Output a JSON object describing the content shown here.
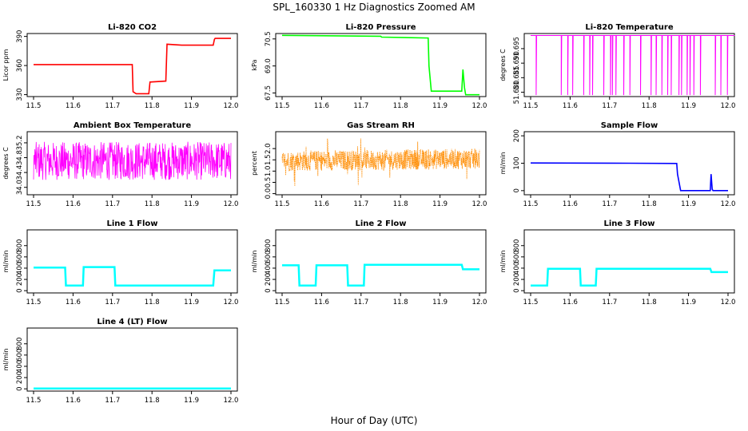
{
  "figure": {
    "title": "SPL_160330 1 Hz Diagnostics Zoomed AM",
    "xlabel": "Hour of Day (UTC)"
  },
  "chart_data": [
    {
      "type": "line",
      "title": "Li-820 CO2",
      "ylabel": "Licor ppm",
      "color": "#ff0000",
      "xlim": [
        11.5,
        12.0
      ],
      "ylim": [
        328,
        393
      ],
      "xticks": [
        11.5,
        11.6,
        11.7,
        11.8,
        11.9,
        12.0
      ],
      "yticks": [
        330,
        360,
        390
      ],
      "series": [
        {
          "x": [
            11.5,
            11.75,
            11.752,
            11.76,
            11.792,
            11.795,
            11.835,
            11.838,
            11.875,
            11.955,
            11.958,
            11.96,
            12.0
          ],
          "y": [
            361,
            361,
            333,
            331,
            331,
            343,
            344,
            382,
            381,
            381,
            387,
            388,
            388
          ]
        }
      ]
    },
    {
      "type": "line",
      "title": "Li-820 Pressure",
      "ylabel": "kPa",
      "color": "#00ff00",
      "xlim": [
        11.5,
        12.0
      ],
      "ylim": [
        67.3,
        70.8
      ],
      "xticks": [
        11.5,
        11.6,
        11.7,
        11.8,
        11.9,
        12.0
      ],
      "yticks": [
        67.5,
        69.0,
        70.5
      ],
      "series": [
        {
          "x": [
            11.5,
            11.75,
            11.752,
            11.87,
            11.872,
            11.878,
            11.885,
            11.955,
            11.958,
            11.962,
            11.965,
            11.975,
            12.0
          ],
          "y": [
            70.7,
            70.65,
            70.6,
            70.55,
            69.0,
            67.6,
            67.6,
            67.6,
            68.8,
            67.8,
            67.4,
            67.4,
            67.4
          ]
        }
      ]
    },
    {
      "type": "line",
      "title": "Li-820 Temperature",
      "ylabel": "degrees C",
      "color": "#ff00ff",
      "xlim": [
        11.5,
        12.0
      ],
      "ylim": [
        51.6785,
        51.7002
      ],
      "xticks": [
        11.5,
        11.6,
        11.7,
        11.8,
        11.9,
        12.0
      ],
      "yticks": [
        51.68,
        51.685,
        51.69,
        51.695
      ],
      "series": [
        {
          "x": [
            11.5,
            12.0
          ],
          "y": [
            51.6995,
            51.679
          ]
        }
      ]
    },
    {
      "type": "line",
      "title": "Ambient Box Temperature",
      "ylabel": "degrees C",
      "color": "#ff00ff",
      "xlim": [
        11.5,
        12.0
      ],
      "ylim": [
        33.8,
        35.5
      ],
      "xticks": [
        11.5,
        11.6,
        11.7,
        11.8,
        11.9,
        12.0
      ],
      "yticks": [
        34.0,
        34.4,
        34.8,
        35.2
      ],
      "series": [
        {
          "x": [
            11.5,
            12.0
          ],
          "y": [
            34.1,
            35.3
          ]
        }
      ]
    },
    {
      "type": "line",
      "title": "Gas Stream RH",
      "ylabel": "percent",
      "color": "#ff8c00",
      "xlim": [
        11.5,
        12.0
      ],
      "ylim": [
        -0.05,
        2.75
      ],
      "xticks": [
        11.5,
        11.6,
        11.7,
        11.8,
        11.9,
        12.0
      ],
      "yticks": [
        0.0,
        0.5,
        1.0,
        1.5,
        2.0
      ],
      "series": [
        {
          "x": [
            11.5,
            12.0
          ],
          "y": [
            1.0,
            2.0
          ]
        }
      ]
    },
    {
      "type": "line",
      "title": "Sample Flow",
      "ylabel": "ml/min",
      "color": "#0000ff",
      "xlim": [
        11.5,
        12.0
      ],
      "ylim": [
        -15,
        215
      ],
      "xticks": [
        11.5,
        11.6,
        11.7,
        11.8,
        11.9,
        12.0
      ],
      "yticks": [
        0,
        100,
        200
      ],
      "series": [
        {
          "x": [
            11.5,
            11.75,
            11.87,
            11.872,
            11.88,
            11.955,
            11.957,
            11.96,
            11.962,
            11.97,
            12.0
          ],
          "y": [
            101,
            100,
            99,
            60,
            0,
            0,
            60,
            5,
            0,
            0,
            0
          ]
        }
      ]
    },
    {
      "type": "line",
      "title": "Line 1 Flow",
      "ylabel": "ml/min",
      "color": "#00ffff",
      "xlim": [
        11.5,
        12.0
      ],
      "ylim": [
        -40,
        1080
      ],
      "xticks": [
        11.5,
        11.6,
        11.7,
        11.8,
        11.9,
        12.0
      ],
      "yticks": [
        0,
        200,
        400,
        600,
        800
      ],
      "series": [
        {
          "x": [
            11.5,
            11.58,
            11.582,
            11.625,
            11.627,
            11.705,
            11.707,
            11.955,
            11.958,
            12.0
          ],
          "y": [
            410,
            410,
            90,
            90,
            420,
            420,
            90,
            90,
            360,
            360
          ]
        }
      ]
    },
    {
      "type": "line",
      "title": "Line 2 Flow",
      "ylabel": "ml/min",
      "color": "#00ffff",
      "xlim": [
        11.5,
        12.0
      ],
      "ylim": [
        -40,
        1080
      ],
      "xticks": [
        11.5,
        11.6,
        11.7,
        11.8,
        11.9,
        12.0
      ],
      "yticks": [
        0,
        200,
        400,
        600,
        800
      ],
      "series": [
        {
          "x": [
            11.5,
            11.542,
            11.544,
            11.585,
            11.587,
            11.665,
            11.667,
            11.707,
            11.709,
            11.955,
            11.958,
            12.0
          ],
          "y": [
            450,
            450,
            90,
            90,
            450,
            450,
            90,
            90,
            460,
            460,
            380,
            380
          ]
        }
      ]
    },
    {
      "type": "line",
      "title": "Line 3 Flow",
      "ylabel": "ml/min",
      "color": "#00ffff",
      "xlim": [
        11.5,
        12.0
      ],
      "ylim": [
        -40,
        1080
      ],
      "xticks": [
        11.5,
        11.6,
        11.7,
        11.8,
        11.9,
        12.0
      ],
      "yticks": [
        0,
        200,
        400,
        600,
        800
      ],
      "series": [
        {
          "x": [
            11.5,
            11.542,
            11.544,
            11.625,
            11.627,
            11.665,
            11.667,
            11.955,
            11.958,
            12.0
          ],
          "y": [
            90,
            90,
            390,
            390,
            90,
            90,
            390,
            390,
            330,
            330
          ]
        }
      ]
    },
    {
      "type": "line",
      "title": "Line 4 (LT) Flow",
      "ylabel": "ml/min",
      "color": "#00ffff",
      "xlim": [
        11.5,
        12.0
      ],
      "ylim": [
        -40,
        1080
      ],
      "xticks": [
        11.5,
        11.6,
        11.7,
        11.8,
        11.9,
        12.0
      ],
      "yticks": [
        0,
        200,
        400,
        600,
        800
      ],
      "series": [
        {
          "x": [
            11.5,
            12.0
          ],
          "y": [
            5,
            5
          ]
        }
      ]
    }
  ]
}
